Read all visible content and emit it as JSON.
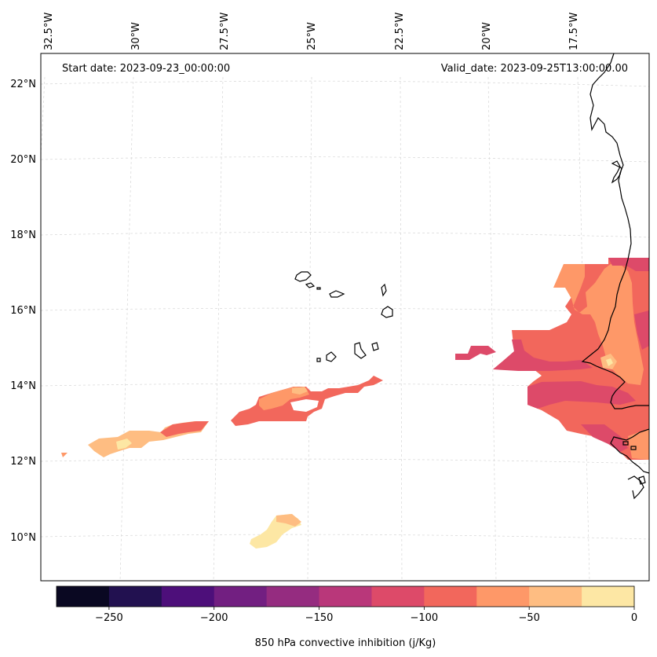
{
  "map": {
    "start_date": "Start date: 2023-09-23_00:00:00",
    "valid_date": "Valid_date: 2023-09-25T13:00:00.00",
    "lon_labels": [
      "32.5°W",
      "30°W",
      "27.5°W",
      "25°W",
      "22.5°W",
      "20°W",
      "17.5°W"
    ],
    "lat_labels": [
      "22°N",
      "20°N",
      "18°N",
      "16°N",
      "14°N",
      "12°N",
      "10°N"
    ],
    "extent": {
      "lon_min": -33,
      "lon_max": -15.3,
      "lat_min": 8.9,
      "lat_max": 22.7
    }
  },
  "colorbar": {
    "title": "850 hPa convective inhibition (j/Kg)",
    "ticks": [
      "−250",
      "−200",
      "−150",
      "−100",
      "−50",
      "0"
    ],
    "levels": [
      -275,
      -250,
      -225,
      -200,
      -175,
      -150,
      -125,
      -100,
      -75,
      -50,
      -25,
      0
    ],
    "colors": [
      "#0a0822",
      "#221150",
      "#4d0f7a",
      "#721f81",
      "#952c80",
      "#b9377a",
      "#dd4a69",
      "#f2675c",
      "#fe9868",
      "#febd82",
      "#fde7a4"
    ]
  },
  "colors": {
    "land_outline": "#000000",
    "grid": "#d0d0d0"
  }
}
